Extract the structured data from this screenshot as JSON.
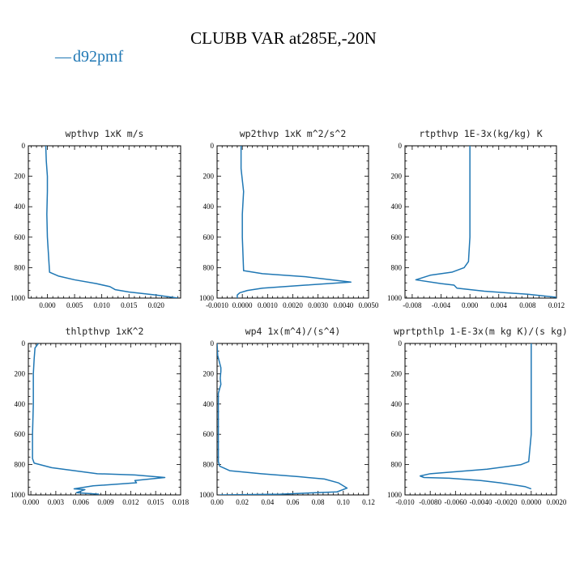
{
  "page": {
    "title": "CLUBB VAR at285E,-20N",
    "legend": {
      "label": "d92pmf",
      "marker": "—",
      "color": "#1f77b4"
    }
  },
  "chart_data": [
    {
      "type": "line",
      "title": "wpthvp   1xK m/s",
      "xlim": [
        -0.0035,
        0.0245
      ],
      "ylim": [
        1000,
        0
      ],
      "x_ticks": [
        0.0,
        0.005,
        0.01,
        0.015,
        0.02
      ],
      "x_tick_labels": [
        "0.000",
        "0.005",
        "0.010",
        "0.015",
        "0.020"
      ],
      "y_ticks": [
        0,
        200,
        400,
        600,
        800,
        1000
      ],
      "y_tick_labels": [
        "0",
        "200",
        "400",
        "600",
        "800",
        "1000"
      ],
      "series": [
        {
          "color": "#1f77b4",
          "x": [
            -0.0003,
            -0.0002,
            0.0,
            0.0,
            -0.0001,
            0.0,
            0.0004,
            0.002,
            0.005,
            0.009,
            0.0115,
            0.0125,
            0.015,
            0.02,
            0.024
          ],
          "y": [
            0,
            100,
            200,
            300,
            450,
            600,
            830,
            855,
            880,
            905,
            925,
            945,
            960,
            980,
            1000
          ]
        }
      ]
    },
    {
      "type": "line",
      "title": "wp2thvp   1xK m^2/s^2",
      "xlim": [
        -0.001,
        0.005
      ],
      "ylim": [
        1000,
        0
      ],
      "x_ticks": [
        -0.001,
        0.0,
        0.001,
        0.002,
        0.003,
        0.004,
        0.005
      ],
      "x_tick_labels": [
        "-0.0010",
        "0.0000",
        "0.0010",
        "0.0020",
        "0.0030",
        "0.0040",
        "0.0050"
      ],
      "y_ticks": [
        0,
        200,
        400,
        600,
        800,
        1000
      ],
      "y_tick_labels": [
        "0",
        "200",
        "400",
        "600",
        "800",
        "1000"
      ],
      "series": [
        {
          "color": "#1f77b4",
          "x": [
            -5e-05,
            -5e-05,
            5e-05,
            0.0,
            0.0,
            5e-05,
            0.0008,
            0.0025,
            0.0043,
            0.0025,
            0.0008,
            0.0002,
            -0.0001,
            -0.0002,
            -0.0002
          ],
          "y": [
            0,
            150,
            300,
            450,
            600,
            820,
            840,
            860,
            895,
            915,
            935,
            950,
            965,
            980,
            1000
          ]
        }
      ]
    },
    {
      "type": "line",
      "title": "rtpthvp   1E-3x(kg/kg) K",
      "xlim": [
        -0.009,
        0.012
      ],
      "ylim": [
        1000,
        0
      ],
      "x_ticks": [
        -0.008,
        -0.004,
        0.0,
        0.004,
        0.008,
        0.012
      ],
      "x_tick_labels": [
        "-0.008",
        "-0.004",
        "0.000",
        "0.004",
        "0.008",
        "0.012"
      ],
      "y_ticks": [
        0,
        200,
        400,
        600,
        800,
        1000
      ],
      "y_tick_labels": [
        "0",
        "200",
        "400",
        "600",
        "800",
        "1000"
      ],
      "series": [
        {
          "color": "#1f77b4",
          "x": [
            0.0,
            0.0,
            0.0,
            0.0,
            -0.0002,
            -0.0008,
            -0.0025,
            -0.0055,
            -0.0075,
            -0.004,
            -0.0022,
            -0.0018,
            0.002,
            0.008,
            0.012
          ],
          "y": [
            0,
            200,
            400,
            600,
            760,
            800,
            830,
            850,
            880,
            905,
            915,
            935,
            955,
            975,
            995
          ]
        }
      ]
    },
    {
      "type": "line",
      "title": "thlpthvp   1xK^2",
      "xlim": [
        -0.0003,
        0.018
      ],
      "ylim": [
        1000,
        0
      ],
      "x_ticks": [
        0.0,
        0.003,
        0.006,
        0.009,
        0.012,
        0.015,
        0.018
      ],
      "x_tick_labels": [
        "0.000",
        "0.003",
        "0.006",
        "0.009",
        "0.012",
        "0.015",
        "0.018"
      ],
      "y_ticks": [
        0,
        200,
        400,
        600,
        800,
        1000
      ],
      "y_tick_labels": [
        "0",
        "200",
        "400",
        "600",
        "800",
        "1000"
      ],
      "series": [
        {
          "color": "#1f77b4",
          "x": [
            0.0009,
            0.0005,
            0.0004,
            0.0003,
            0.0003,
            0.0002,
            0.0002,
            0.0004,
            0.0025,
            0.008,
            0.0125,
            0.0161,
            0.0125,
            0.0127,
            0.0075,
            0.0052,
            0.0065,
            0.0055,
            0.0082
          ],
          "y": [
            0,
            30,
            100,
            200,
            400,
            600,
            760,
            790,
            820,
            860,
            868,
            885,
            905,
            920,
            940,
            960,
            965,
            985,
            995
          ]
        }
      ]
    },
    {
      "type": "line",
      "title": "wp4   1x(m^4)/(s^4)",
      "xlim": [
        0.0,
        0.12
      ],
      "ylim": [
        1000,
        0
      ],
      "x_ticks": [
        0.0,
        0.02,
        0.04,
        0.06,
        0.08,
        0.1,
        0.12
      ],
      "x_tick_labels": [
        "0.00",
        "0.02",
        "0.04",
        "0.06",
        "0.08",
        "0.10",
        "0.12"
      ],
      "y_ticks": [
        0,
        200,
        400,
        600,
        800,
        1000
      ],
      "y_tick_labels": [
        "0",
        "200",
        "400",
        "600",
        "800",
        "1000"
      ],
      "series": [
        {
          "color": "#1f77b4",
          "x": [
            0.0,
            0.0005,
            0.003,
            0.003,
            0.0025,
            0.003,
            0.002,
            0.001,
            0.001,
            0.001,
            0.002,
            0.01,
            0.035,
            0.065,
            0.085,
            0.096,
            0.103,
            0.095,
            0.05,
            0.002
          ],
          "y": [
            0,
            80,
            160,
            185,
            230,
            270,
            300,
            330,
            500,
            780,
            810,
            840,
            860,
            880,
            895,
            920,
            955,
            980,
            995,
            1000
          ]
        }
      ]
    },
    {
      "type": "line",
      "title": "wprtpthlp   1-E-3x(m kg K)/(s kg)",
      "xlim": [
        -0.01,
        0.002
      ],
      "ylim": [
        1000,
        0
      ],
      "x_ticks": [
        -0.01,
        -0.008,
        -0.006,
        -0.004,
        -0.002,
        0.0,
        0.002
      ],
      "x_tick_labels": [
        "-0.010",
        "-0.0080",
        "-0.0060",
        "-0.0040",
        "-0.0020",
        "0.0000",
        "0.0020"
      ],
      "y_ticks": [
        0,
        200,
        400,
        600,
        800,
        1000
      ],
      "y_tick_labels": [
        "0",
        "200",
        "400",
        "600",
        "800",
        "1000"
      ],
      "series": [
        {
          "color": "#1f77b4",
          "x": [
            0.0,
            0.0,
            0.0,
            0.0,
            -0.0002,
            -0.0008,
            -0.0035,
            -0.008,
            -0.0088,
            -0.0085,
            -0.0065,
            -0.004,
            -0.0025,
            -0.0005,
            0.0
          ],
          "y": [
            0,
            200,
            400,
            600,
            780,
            800,
            830,
            860,
            875,
            885,
            890,
            905,
            920,
            945,
            960
          ]
        }
      ]
    }
  ]
}
